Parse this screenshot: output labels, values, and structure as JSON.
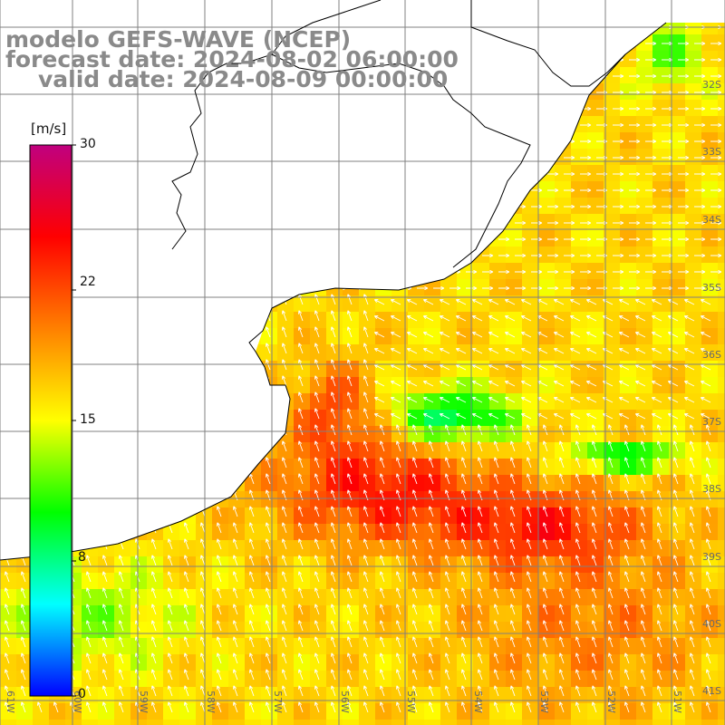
{
  "title": {
    "line1": "modelo GEFS-WAVE (NCEP)",
    "line2": "forecast date: 2024-08-02 06:00:00",
    "line3": "valid date: 2024-08-09 00:00:00"
  },
  "colorbar": {
    "unit": "[m/s]",
    "ticks": [
      "30",
      "22",
      "15",
      "8",
      "0"
    ],
    "range": [
      0,
      30
    ],
    "stops": [
      "#0000ff",
      "#00ffff",
      "#00ff00",
      "#ffff00",
      "#ff8000",
      "#ff0000",
      "#c0007f"
    ]
  },
  "map": {
    "lon_labels": [
      "61W",
      "60W",
      "59W",
      "58W",
      "57W",
      "56W",
      "55W",
      "54W",
      "53W",
      "52W",
      "51W"
    ],
    "lat_labels": [
      "32S",
      "33S",
      "34S",
      "35S",
      "36S",
      "37S",
      "38S",
      "39S",
      "40S",
      "41S"
    ],
    "land_color": "#ffffff",
    "grid_color": "#808080",
    "arrow_color": "#ffffff"
  }
}
